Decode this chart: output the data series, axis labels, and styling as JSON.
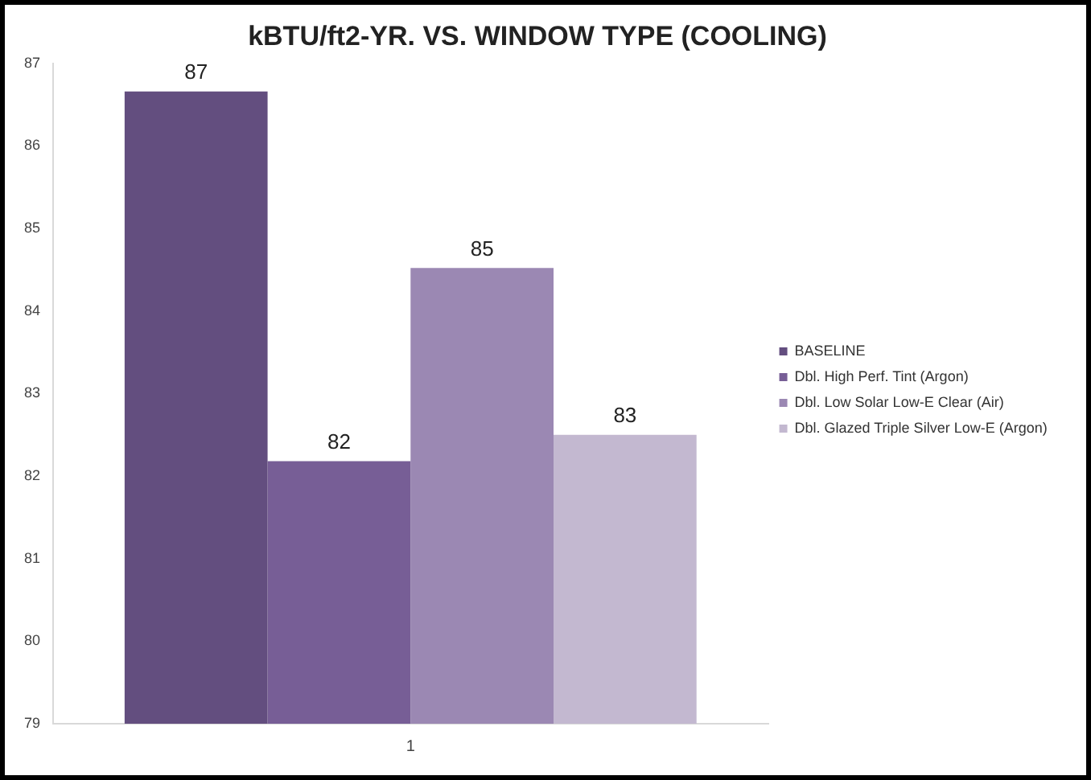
{
  "chart_data": {
    "type": "bar",
    "title": "kBTU/ft2-YR. VS. WINDOW TYPE (COOLING)",
    "categories": [
      "1"
    ],
    "series": [
      {
        "name": "BASELINE",
        "color": "#634e7f",
        "values": [
          86.66
        ],
        "value_labels": [
          "87"
        ]
      },
      {
        "name": "Dbl. High Perf. Tint (Argon)",
        "color": "#775e96",
        "values": [
          82.18
        ],
        "value_labels": [
          "82"
        ]
      },
      {
        "name": "Dbl. Low Solar Low-E Clear (Air)",
        "color": "#9b88b3",
        "values": [
          84.52
        ],
        "value_labels": [
          "85"
        ]
      },
      {
        "name": "Dbl. Glazed Triple Silver Low-E (Argon)",
        "color": "#c3b8d0",
        "values": [
          82.5
        ],
        "value_labels": [
          "83"
        ]
      }
    ],
    "ylim": [
      79,
      87
    ],
    "yticks": [
      79,
      80,
      81,
      82,
      83,
      84,
      85,
      86,
      87
    ],
    "grid": false,
    "legend": "right"
  }
}
